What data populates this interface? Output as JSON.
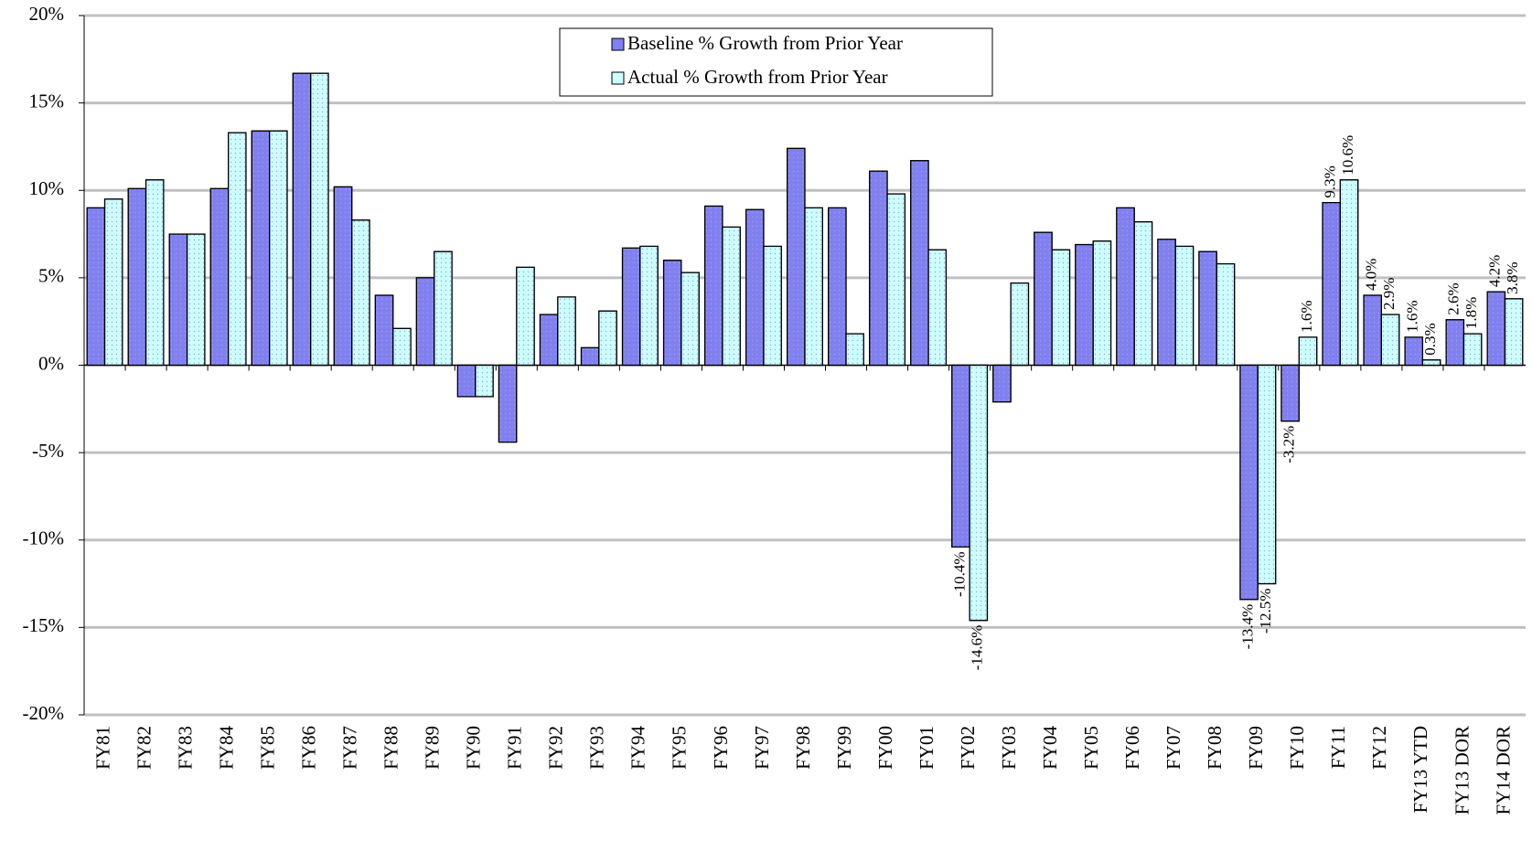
{
  "chart_data": {
    "type": "bar",
    "categories": [
      "FY81",
      "FY82",
      "FY83",
      "FY84",
      "FY85",
      "FY86",
      "FY87",
      "FY88",
      "FY89",
      "FY90",
      "FY91",
      "FY92",
      "FY93",
      "FY94",
      "FY95",
      "FY96",
      "FY97",
      "FY98",
      "FY99",
      "FY00",
      "FY01",
      "FY02",
      "FY03",
      "FY04",
      "FY05",
      "FY06",
      "FY07",
      "FY08",
      "FY09",
      "FY10",
      "FY11",
      "FY12",
      "FY13 YTD",
      "FY13 DOR",
      "FY14 DOR"
    ],
    "series": [
      {
        "name": "Baseline % Growth from Prior Year",
        "color": "#8080f0",
        "values": [
          9.0,
          10.1,
          7.5,
          10.1,
          13.4,
          16.7,
          10.2,
          4.0,
          5.0,
          -1.8,
          -4.4,
          2.9,
          1.0,
          6.7,
          6.0,
          9.1,
          8.9,
          12.4,
          9.0,
          11.1,
          11.7,
          -10.4,
          -2.1,
          7.6,
          6.9,
          9.0,
          7.2,
          6.5,
          -13.4,
          -3.2,
          9.3,
          4.0,
          1.6,
          2.6,
          4.2
        ],
        "value_labels": [
          null,
          null,
          null,
          null,
          null,
          null,
          null,
          null,
          null,
          null,
          null,
          null,
          null,
          null,
          null,
          null,
          null,
          null,
          null,
          null,
          null,
          "-10.4%",
          null,
          null,
          null,
          null,
          null,
          null,
          "-13.4%",
          "-3.2%",
          "9.3%",
          "4.0%",
          "1.6%",
          "2.6%",
          "4.2%"
        ]
      },
      {
        "name": "Actual % Growth from Prior Year",
        "color": "#ccffff",
        "values": [
          9.5,
          10.6,
          7.5,
          13.3,
          13.4,
          16.7,
          8.3,
          2.1,
          6.5,
          -1.8,
          5.6,
          3.9,
          3.1,
          6.8,
          5.3,
          7.9,
          6.8,
          9.0,
          1.8,
          9.8,
          6.6,
          -14.6,
          4.7,
          6.6,
          7.1,
          8.2,
          6.8,
          5.8,
          -12.5,
          1.6,
          10.6,
          2.9,
          0.3,
          1.8,
          3.8
        ],
        "value_labels": [
          null,
          null,
          null,
          null,
          null,
          null,
          null,
          null,
          null,
          null,
          null,
          null,
          null,
          null,
          null,
          null,
          null,
          null,
          null,
          null,
          null,
          "-14.6%",
          null,
          null,
          null,
          null,
          null,
          null,
          "-12.5%",
          "1.6%",
          "10.6%",
          "2.9%",
          "0.3%",
          "1.8%",
          "3.8%"
        ]
      }
    ],
    "ylim": [
      -20,
      20
    ],
    "yticks": [
      {
        "value": -20,
        "label": "-20%"
      },
      {
        "value": -15,
        "label": "-15%"
      },
      {
        "value": -10,
        "label": "-10%"
      },
      {
        "value": -5,
        "label": "-5%"
      },
      {
        "value": 0,
        "label": "0%"
      },
      {
        "value": 5,
        "label": "5%"
      },
      {
        "value": 10,
        "label": "10%"
      },
      {
        "value": 15,
        "label": "15%"
      },
      {
        "value": 20,
        "label": "20%"
      }
    ],
    "grid": true,
    "legend": "top"
  }
}
